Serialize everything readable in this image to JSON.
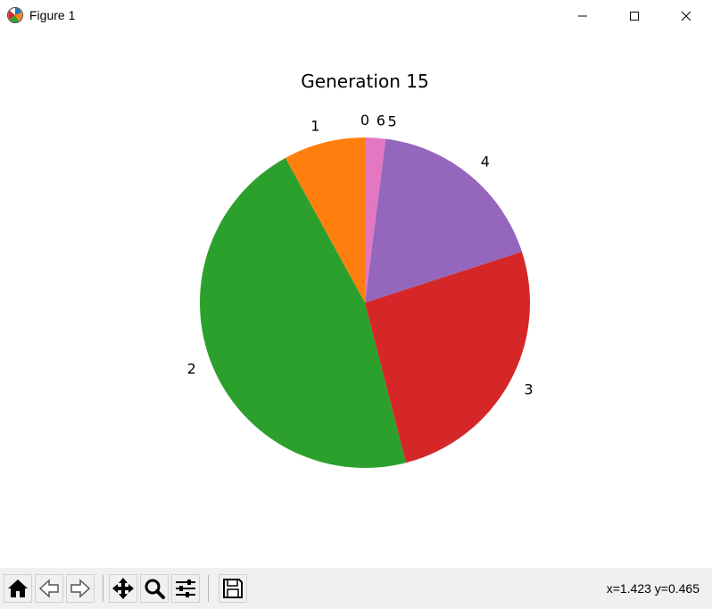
{
  "window": {
    "title": "Figure 1"
  },
  "icons": {
    "app": "matplotlib-icon",
    "minimize": "minimize-icon",
    "maximize": "maximize-icon",
    "close": "close-icon"
  },
  "toolbar": {
    "buttons": [
      {
        "name": "home-button",
        "icon": "home-icon"
      },
      {
        "name": "back-button",
        "icon": "back-arrow-icon"
      },
      {
        "name": "forward-button",
        "icon": "forward-arrow-icon"
      },
      {
        "name": "pan-button",
        "icon": "move-icon"
      },
      {
        "name": "zoom-button",
        "icon": "magnifier-icon"
      },
      {
        "name": "configure-subplots-button",
        "icon": "sliders-icon"
      },
      {
        "name": "save-button",
        "icon": "floppy-disk-icon"
      }
    ],
    "coords": "x=1.423 y=0.465"
  },
  "chart_data": {
    "type": "pie",
    "title": "Generation 15",
    "start_angle": 90,
    "direction": "counterclockwise",
    "labels": [
      "0",
      "1",
      "2",
      "3",
      "4",
      "5",
      "6"
    ],
    "values": [
      0,
      8,
      46,
      26,
      18,
      0,
      2
    ],
    "colors": [
      "#1f77b4",
      "#ff7f0e",
      "#2ca02c",
      "#d62728",
      "#9467bd",
      "#8c564b",
      "#e377c2"
    ]
  }
}
